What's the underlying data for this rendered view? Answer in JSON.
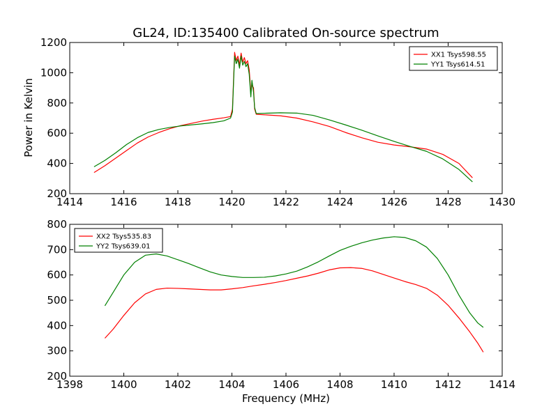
{
  "figure": {
    "title": "GL24, ID:135400 Calibrated On-source spectrum",
    "ylabel": "Power in Kelvin",
    "xlabel": "Frequency (MHz)"
  },
  "chart_data": [
    {
      "type": "line",
      "xlim": [
        1414,
        1430
      ],
      "ylim": [
        200,
        1200
      ],
      "xticks": [
        "1414",
        "1416",
        "1418",
        "1420",
        "1422",
        "1424",
        "1426",
        "1428",
        "1430"
      ],
      "yticks": [
        "200",
        "400",
        "600",
        "800",
        "1000",
        "1200"
      ],
      "legend_position": "top-right",
      "series": [
        {
          "name": "XX1 Tsys598.55",
          "color": "#ff0000",
          "points": [
            [
              1414.9,
              340
            ],
            [
              1415.3,
              385
            ],
            [
              1415.7,
              435
            ],
            [
              1416.1,
              485
            ],
            [
              1416.5,
              535
            ],
            [
              1416.9,
              575
            ],
            [
              1417.3,
              605
            ],
            [
              1417.7,
              630
            ],
            [
              1418.1,
              650
            ],
            [
              1418.5,
              665
            ],
            [
              1418.9,
              680
            ],
            [
              1419.3,
              692
            ],
            [
              1419.7,
              702
            ],
            [
              1419.95,
              710
            ],
            [
              1420.02,
              760
            ],
            [
              1420.06,
              950
            ],
            [
              1420.1,
              1135
            ],
            [
              1420.16,
              1080
            ],
            [
              1420.22,
              1110
            ],
            [
              1420.28,
              1050
            ],
            [
              1420.34,
              1130
            ],
            [
              1420.4,
              1070
            ],
            [
              1420.46,
              1100
            ],
            [
              1420.52,
              1060
            ],
            [
              1420.58,
              1080
            ],
            [
              1420.64,
              1020
            ],
            [
              1420.7,
              870
            ],
            [
              1420.74,
              920
            ],
            [
              1420.8,
              900
            ],
            [
              1420.84,
              760
            ],
            [
              1420.9,
              725
            ],
            [
              1421.2,
              722
            ],
            [
              1421.8,
              715
            ],
            [
              1422.4,
              700
            ],
            [
              1423.0,
              675
            ],
            [
              1423.6,
              645
            ],
            [
              1424.2,
              605
            ],
            [
              1424.8,
              570
            ],
            [
              1425.4,
              540
            ],
            [
              1426.0,
              522
            ],
            [
              1426.6,
              510
            ],
            [
              1427.2,
              495
            ],
            [
              1427.8,
              460
            ],
            [
              1428.4,
              400
            ],
            [
              1428.9,
              305
            ]
          ]
        },
        {
          "name": "YY1 Tsys614.51",
          "color": "#008000",
          "points": [
            [
              1414.9,
              378
            ],
            [
              1415.3,
              420
            ],
            [
              1415.7,
              470
            ],
            [
              1416.1,
              525
            ],
            [
              1416.5,
              570
            ],
            [
              1416.9,
              605
            ],
            [
              1417.3,
              625
            ],
            [
              1417.7,
              638
            ],
            [
              1418.1,
              648
            ],
            [
              1418.5,
              655
            ],
            [
              1418.9,
              662
            ],
            [
              1419.3,
              670
            ],
            [
              1419.7,
              682
            ],
            [
              1419.95,
              700
            ],
            [
              1420.02,
              740
            ],
            [
              1420.06,
              930
            ],
            [
              1420.1,
              1110
            ],
            [
              1420.16,
              1060
            ],
            [
              1420.22,
              1090
            ],
            [
              1420.28,
              1030
            ],
            [
              1420.34,
              1110
            ],
            [
              1420.4,
              1050
            ],
            [
              1420.46,
              1075
            ],
            [
              1420.52,
              1040
            ],
            [
              1420.58,
              1060
            ],
            [
              1420.64,
              990
            ],
            [
              1420.7,
              840
            ],
            [
              1420.74,
              950
            ],
            [
              1420.8,
              870
            ],
            [
              1420.84,
              770
            ],
            [
              1420.9,
              730
            ],
            [
              1421.2,
              732
            ],
            [
              1421.8,
              735
            ],
            [
              1422.4,
              733
            ],
            [
              1423.0,
              718
            ],
            [
              1423.6,
              688
            ],
            [
              1424.2,
              655
            ],
            [
              1424.8,
              620
            ],
            [
              1425.4,
              582
            ],
            [
              1426.0,
              546
            ],
            [
              1426.6,
              512
            ],
            [
              1427.2,
              480
            ],
            [
              1427.8,
              430
            ],
            [
              1428.4,
              360
            ],
            [
              1428.9,
              278
            ]
          ]
        }
      ]
    },
    {
      "type": "line",
      "xlim": [
        1398,
        1414
      ],
      "ylim": [
        200,
        800
      ],
      "xticks": [
        "1398",
        "1400",
        "1402",
        "1404",
        "1406",
        "1408",
        "1410",
        "1412",
        "1414"
      ],
      "yticks": [
        "200",
        "300",
        "400",
        "500",
        "600",
        "700",
        "800"
      ],
      "legend_position": "top-left",
      "series": [
        {
          "name": "XX2 Tsys535.83",
          "color": "#ff0000",
          "points": [
            [
              1399.3,
              350
            ],
            [
              1399.6,
              385
            ],
            [
              1400.0,
              440
            ],
            [
              1400.4,
              490
            ],
            [
              1400.8,
              525
            ],
            [
              1401.2,
              543
            ],
            [
              1401.6,
              548
            ],
            [
              1402.0,
              547
            ],
            [
              1402.4,
              545
            ],
            [
              1402.8,
              543
            ],
            [
              1403.2,
              541
            ],
            [
              1403.6,
              541
            ],
            [
              1404.0,
              545
            ],
            [
              1404.4,
              550
            ],
            [
              1404.8,
              557
            ],
            [
              1405.2,
              563
            ],
            [
              1405.6,
              570
            ],
            [
              1406.0,
              578
            ],
            [
              1406.4,
              587
            ],
            [
              1406.8,
              596
            ],
            [
              1407.2,
              607
            ],
            [
              1407.6,
              620
            ],
            [
              1408.0,
              628
            ],
            [
              1408.4,
              629
            ],
            [
              1408.8,
              626
            ],
            [
              1409.2,
              616
            ],
            [
              1409.6,
              602
            ],
            [
              1410.0,
              588
            ],
            [
              1410.4,
              574
            ],
            [
              1410.8,
              562
            ],
            [
              1411.2,
              547
            ],
            [
              1411.6,
              520
            ],
            [
              1412.0,
              480
            ],
            [
              1412.4,
              430
            ],
            [
              1412.8,
              375
            ],
            [
              1413.1,
              330
            ],
            [
              1413.3,
              295
            ]
          ]
        },
        {
          "name": "YY2 Tsys639.01",
          "color": "#008000",
          "points": [
            [
              1399.3,
              478
            ],
            [
              1399.6,
              530
            ],
            [
              1400.0,
              600
            ],
            [
              1400.4,
              650
            ],
            [
              1400.8,
              678
            ],
            [
              1401.2,
              683
            ],
            [
              1401.6,
              675
            ],
            [
              1402.0,
              660
            ],
            [
              1402.4,
              645
            ],
            [
              1402.8,
              628
            ],
            [
              1403.2,
              612
            ],
            [
              1403.6,
              600
            ],
            [
              1404.0,
              594
            ],
            [
              1404.4,
              590
            ],
            [
              1404.8,
              590
            ],
            [
              1405.2,
              591
            ],
            [
              1405.6,
              596
            ],
            [
              1406.0,
              604
            ],
            [
              1406.4,
              615
            ],
            [
              1406.8,
              632
            ],
            [
              1407.2,
              652
            ],
            [
              1407.6,
              675
            ],
            [
              1408.0,
              697
            ],
            [
              1408.4,
              713
            ],
            [
              1408.8,
              727
            ],
            [
              1409.2,
              738
            ],
            [
              1409.6,
              746
            ],
            [
              1410.0,
              751
            ],
            [
              1410.4,
              748
            ],
            [
              1410.8,
              735
            ],
            [
              1411.2,
              710
            ],
            [
              1411.6,
              665
            ],
            [
              1412.0,
              600
            ],
            [
              1412.4,
              520
            ],
            [
              1412.8,
              450
            ],
            [
              1413.1,
              410
            ],
            [
              1413.3,
              393
            ]
          ]
        }
      ]
    }
  ]
}
